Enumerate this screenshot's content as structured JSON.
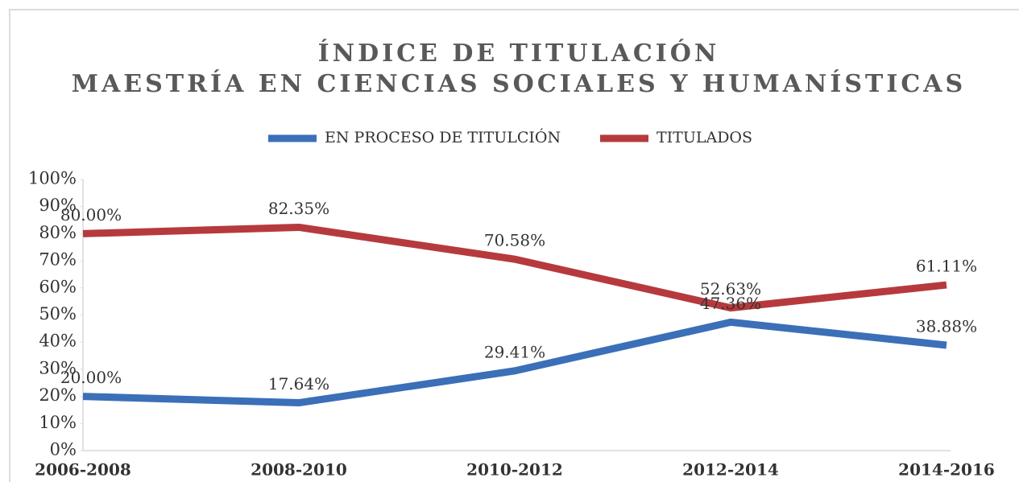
{
  "chart_data": {
    "type": "line",
    "title": "ÍNDICE DE TITULACIÓN",
    "subtitle": "MAESTRÍA EN CIENCIAS SOCIALES Y HUMANÍSTICAS",
    "categories": [
      "2006-2008",
      "2008-2010",
      "2010-2012",
      "2012-2014",
      "2014-2016"
    ],
    "series": [
      {
        "name": "EN PROCESO DE TITULCIÓN",
        "color": "#3b6fb8",
        "values": [
          20,
          17.64,
          29.41,
          47.36,
          38.88
        ],
        "value_labels": [
          "20.00%",
          "17.64%",
          "29.41%",
          "47.36%",
          "38.88%"
        ]
      },
      {
        "name": "TITULADOS",
        "color": "#b63a3d",
        "values": [
          80,
          82.35,
          70.58,
          52.63,
          61.11
        ],
        "value_labels": [
          "80.00%",
          "82.35%",
          "70.58%",
          "52.63%",
          "61.11%"
        ]
      }
    ],
    "ylim": [
      0,
      100
    ],
    "yticks": [
      {
        "value": 0,
        "label": "0%"
      },
      {
        "value": 10,
        "label": "10%"
      },
      {
        "value": 20,
        "label": "20%"
      },
      {
        "value": 30,
        "label": "30%"
      },
      {
        "value": 40,
        "label": "40%"
      },
      {
        "value": 50,
        "label": "50%"
      },
      {
        "value": 60,
        "label": "60%"
      },
      {
        "value": 70,
        "label": "70%"
      },
      {
        "value": 80,
        "label": "80%"
      },
      {
        "value": 90,
        "label": "90%"
      },
      {
        "value": 100,
        "label": "100%"
      }
    ],
    "legend": "top"
  }
}
